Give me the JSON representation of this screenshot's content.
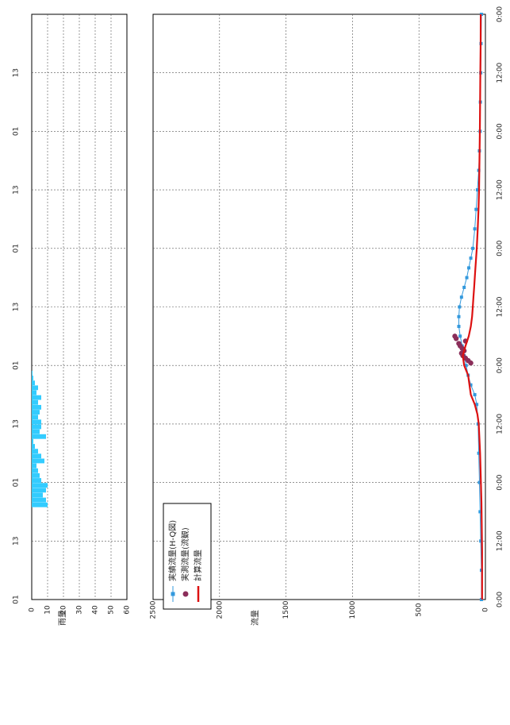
{
  "chart_data": [
    {
      "type": "bar",
      "panel": "rainfall",
      "ylabel": "雨量",
      "yticks": [
        "0",
        "10",
        "20",
        "30",
        "40",
        "50",
        "60"
      ],
      "ylim": [
        0,
        60
      ],
      "xticks": [
        "01",
        "13",
        "01",
        "13",
        "01",
        "13",
        "01",
        "13",
        "01",
        "13"
      ],
      "grid": true,
      "bar_color": "#33ccff",
      "rain_x": [
        19,
        20,
        21,
        22,
        23,
        24,
        25,
        26,
        27,
        28,
        29,
        30,
        31,
        32,
        33,
        34,
        35,
        36,
        37,
        38,
        39,
        40,
        41,
        42,
        43,
        44,
        45,
        46
      ],
      "rain_values": [
        10,
        9,
        7,
        9,
        10,
        6,
        5,
        4,
        3,
        8,
        6,
        4,
        2,
        1,
        9,
        5,
        6,
        6,
        4,
        5,
        6,
        4,
        6,
        3,
        4,
        2,
        1,
        0.5
      ]
    },
    {
      "type": "line",
      "panel": "discharge",
      "ylabel": "流量",
      "yticks": [
        "0",
        "500",
        "1000",
        "1500",
        "2000",
        "2500"
      ],
      "ylim": [
        0,
        2500
      ],
      "xticks": [
        "0:00",
        "12:00",
        "0:00",
        "12:00",
        "0:00",
        "12:00",
        "0:00",
        "12:00",
        "0:00",
        "12:00",
        "0:00"
      ],
      "xlim": [
        0,
        120
      ],
      "grid": true,
      "legend_position": "bottom-left",
      "series": [
        {
          "name": "実績流量(H-Q図)",
          "color": "#3399dd",
          "marker": "square",
          "x": [
            0,
            6,
            12,
            18,
            24,
            30,
            36,
            40,
            42,
            44,
            46,
            48,
            50,
            52,
            54,
            56,
            58,
            60,
            62,
            64,
            66,
            68,
            70,
            72,
            76,
            80,
            84,
            88,
            92,
            96,
            102,
            108,
            114,
            120
          ],
          "y": [
            30,
            30,
            35,
            40,
            45,
            50,
            55,
            65,
            80,
            110,
            130,
            145,
            160,
            175,
            190,
            200,
            200,
            195,
            180,
            160,
            140,
            125,
            110,
            95,
            80,
            70,
            60,
            50,
            45,
            40,
            38,
            35,
            33,
            30
          ]
        },
        {
          "name": "実測流量(流観)",
          "color": "#8b2e5a",
          "marker": "circle",
          "x": [
            48.5,
            49,
            49.5,
            50,
            50.5,
            51,
            51.5,
            52,
            52.5,
            53,
            53.5,
            54
          ],
          "y": [
            110,
            130,
            150,
            170,
            180,
            160,
            175,
            190,
            200,
            150,
            220,
            230
          ]
        },
        {
          "name": "計算流量",
          "color": "#dd1111",
          "marker": "none",
          "x": [
            0,
            10,
            20,
            30,
            36,
            38,
            40,
            42,
            44,
            46,
            48,
            50,
            52,
            54,
            56,
            58,
            60,
            62,
            64,
            66,
            68,
            72,
            76,
            80,
            84,
            90,
            96,
            102,
            108,
            114,
            120
          ],
          "y": [
            25,
            25,
            30,
            40,
            50,
            60,
            80,
            110,
            120,
            130,
            160,
            170,
            150,
            125,
            110,
            100,
            95,
            90,
            85,
            80,
            75,
            65,
            58,
            52,
            48,
            45,
            42,
            40,
            38,
            36,
            35
          ]
        }
      ]
    }
  ]
}
